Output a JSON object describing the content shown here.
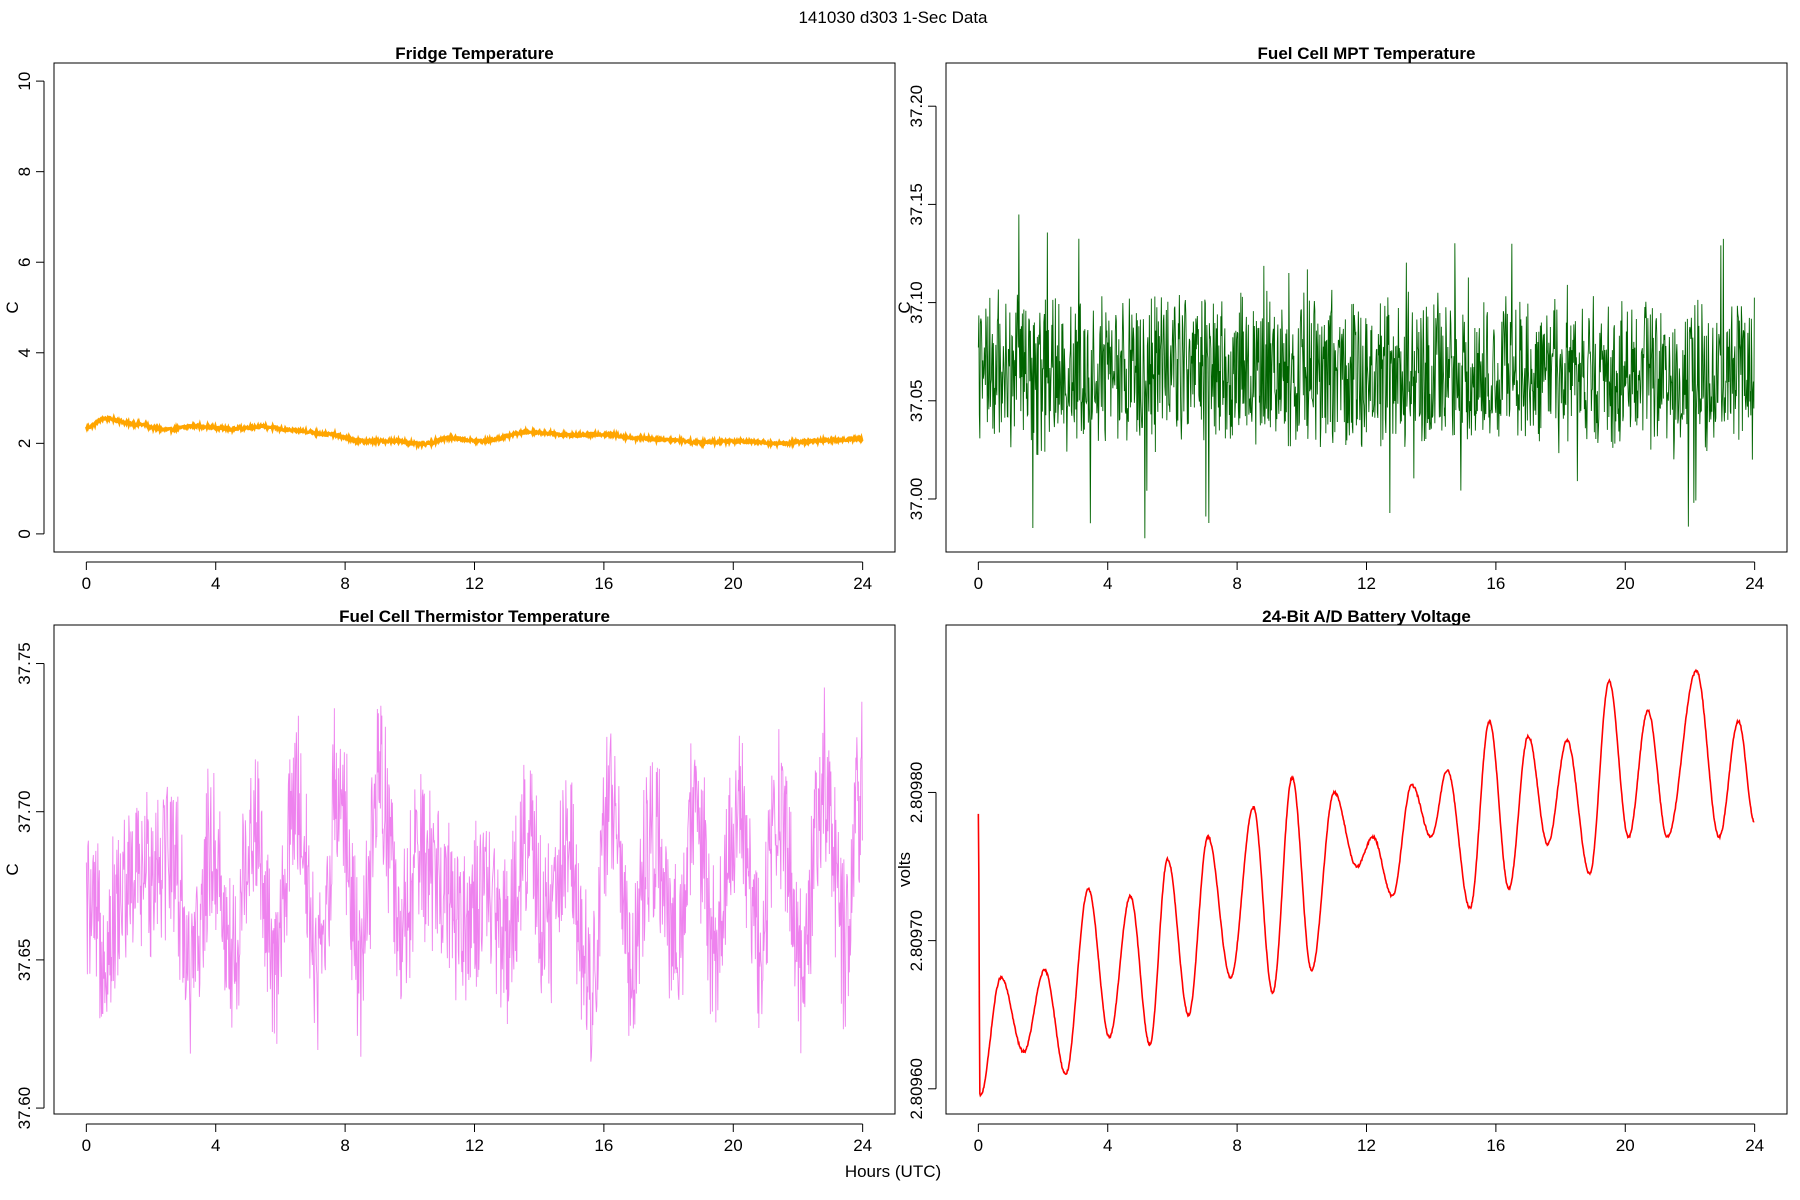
{
  "figure": {
    "title": "141030   d303   1-Sec Data",
    "xlabel": "Hours (UTC)"
  },
  "chart_data": [
    {
      "id": "fridge",
      "type": "line",
      "title": "Fridge Temperature",
      "ylabel": "C",
      "color": "#FFA500",
      "xlim": [
        -1,
        25
      ],
      "ylim": [
        -0.4,
        10.4
      ],
      "xticks": [
        0,
        4,
        8,
        12,
        16,
        20,
        24
      ],
      "yticks": [
        0,
        2,
        4,
        6,
        8,
        10
      ],
      "ytick_labels": [
        "0",
        "2",
        "4",
        "6",
        "8",
        "10"
      ],
      "noise": 0.03,
      "x": [
        0,
        0.6,
        1.5,
        2.5,
        3.3,
        4.5,
        5.4,
        6.5,
        7.5,
        8.5,
        9.5,
        10.4,
        11.2,
        12.2,
        13.7,
        15,
        16,
        17,
        18,
        19,
        20,
        21.5,
        22.5,
        24
      ],
      "y": [
        2.35,
        2.55,
        2.43,
        2.3,
        2.38,
        2.32,
        2.37,
        2.28,
        2.2,
        2.05,
        2.05,
        1.98,
        2.12,
        2.05,
        2.25,
        2.18,
        2.2,
        2.12,
        2.08,
        2.02,
        2.05,
        2.0,
        2.05,
        2.1
      ]
    },
    {
      "id": "mpt",
      "type": "line",
      "title": "Fuel Cell MPT Temperature",
      "ylabel": "C",
      "color": "#006400",
      "xlim": [
        -1,
        25
      ],
      "ylim": [
        36.973,
        37.222
      ],
      "xticks": [
        0,
        4,
        8,
        12,
        16,
        20,
        24
      ],
      "yticks": [
        37.0,
        37.05,
        37.1,
        37.15,
        37.2
      ],
      "ytick_labels": [
        "37.00",
        "37.05",
        "37.10",
        "37.15",
        "37.20"
      ],
      "noise": 0.032,
      "x": [
        0,
        24
      ],
      "y": [
        37.065,
        37.065
      ]
    },
    {
      "id": "thermistor",
      "type": "line",
      "title": "Fuel Cell Thermistor Temperature",
      "ylabel": "C",
      "color": "#EE82EE",
      "xlim": [
        -1,
        25
      ],
      "ylim": [
        37.598,
        37.763
      ],
      "xticks": [
        0,
        4,
        8,
        12,
        16,
        20,
        24
      ],
      "yticks": [
        37.6,
        37.65,
        37.7,
        37.75
      ],
      "ytick_labels": [
        "37.60",
        "37.65",
        "37.70",
        "37.75"
      ],
      "noise": 0.028,
      "x": [
        0,
        0.5,
        1.3,
        2.6,
        3.3,
        3.9,
        4.5,
        5.2,
        5.8,
        6.5,
        7.2,
        7.8,
        8.5,
        9.1,
        9.7,
        10.3,
        11,
        11.6,
        12.3,
        13,
        13.6,
        14.3,
        14.9,
        15.6,
        16.2,
        16.9,
        17.5,
        18.2,
        18.8,
        19.5,
        20.1,
        20.8,
        21.4,
        22.1,
        22.8,
        23.4,
        24
      ],
      "y": [
        37.665,
        37.655,
        37.675,
        37.688,
        37.645,
        37.69,
        37.65,
        37.698,
        37.645,
        37.705,
        37.648,
        37.71,
        37.648,
        37.712,
        37.655,
        37.685,
        37.675,
        37.665,
        37.668,
        37.66,
        37.69,
        37.66,
        37.69,
        37.642,
        37.705,
        37.65,
        37.695,
        37.65,
        37.7,
        37.652,
        37.702,
        37.655,
        37.705,
        37.65,
        37.71,
        37.658,
        37.705
      ]
    },
    {
      "id": "battery",
      "type": "line",
      "title": "24-Bit A/D Battery Voltage",
      "ylabel": "volts",
      "color": "#FF0000",
      "xlim": [
        -1,
        25
      ],
      "ylim": [
        2.809583,
        2.809913
      ],
      "xticks": [
        0,
        4,
        8,
        12,
        16,
        20,
        24
      ],
      "yticks": [
        2.8096,
        2.8097,
        2.8098
      ],
      "ytick_labels": [
        "2.80960",
        "2.80970",
        "2.80980"
      ],
      "noise": 8e-07,
      "x": [
        0,
        0.05,
        0.7,
        1.4,
        2.05,
        2.7,
        3.4,
        4.05,
        4.7,
        5.3,
        5.85,
        6.5,
        7.1,
        7.8,
        8.5,
        9.1,
        9.7,
        10.3,
        11.0,
        11.7,
        12.2,
        12.8,
        13.4,
        14.0,
        14.5,
        15.2,
        15.8,
        16.4,
        17.0,
        17.6,
        18.2,
        18.9,
        19.5,
        20.1,
        20.7,
        21.3,
        22.2,
        22.9,
        23.5,
        24
      ],
      "y": [
        2.809785,
        2.809595,
        2.809675,
        2.809625,
        2.80968,
        2.80961,
        2.809735,
        2.809635,
        2.80973,
        2.80963,
        2.809755,
        2.80965,
        2.80977,
        2.809675,
        2.80979,
        2.809665,
        2.80981,
        2.80968,
        2.8098,
        2.80975,
        2.80977,
        2.80973,
        2.809805,
        2.80977,
        2.809815,
        2.809722,
        2.809848,
        2.809735,
        2.809838,
        2.809765,
        2.809835,
        2.809745,
        2.809875,
        2.80977,
        2.809855,
        2.80977,
        2.809882,
        2.80977,
        2.809848,
        2.80978
      ]
    }
  ]
}
